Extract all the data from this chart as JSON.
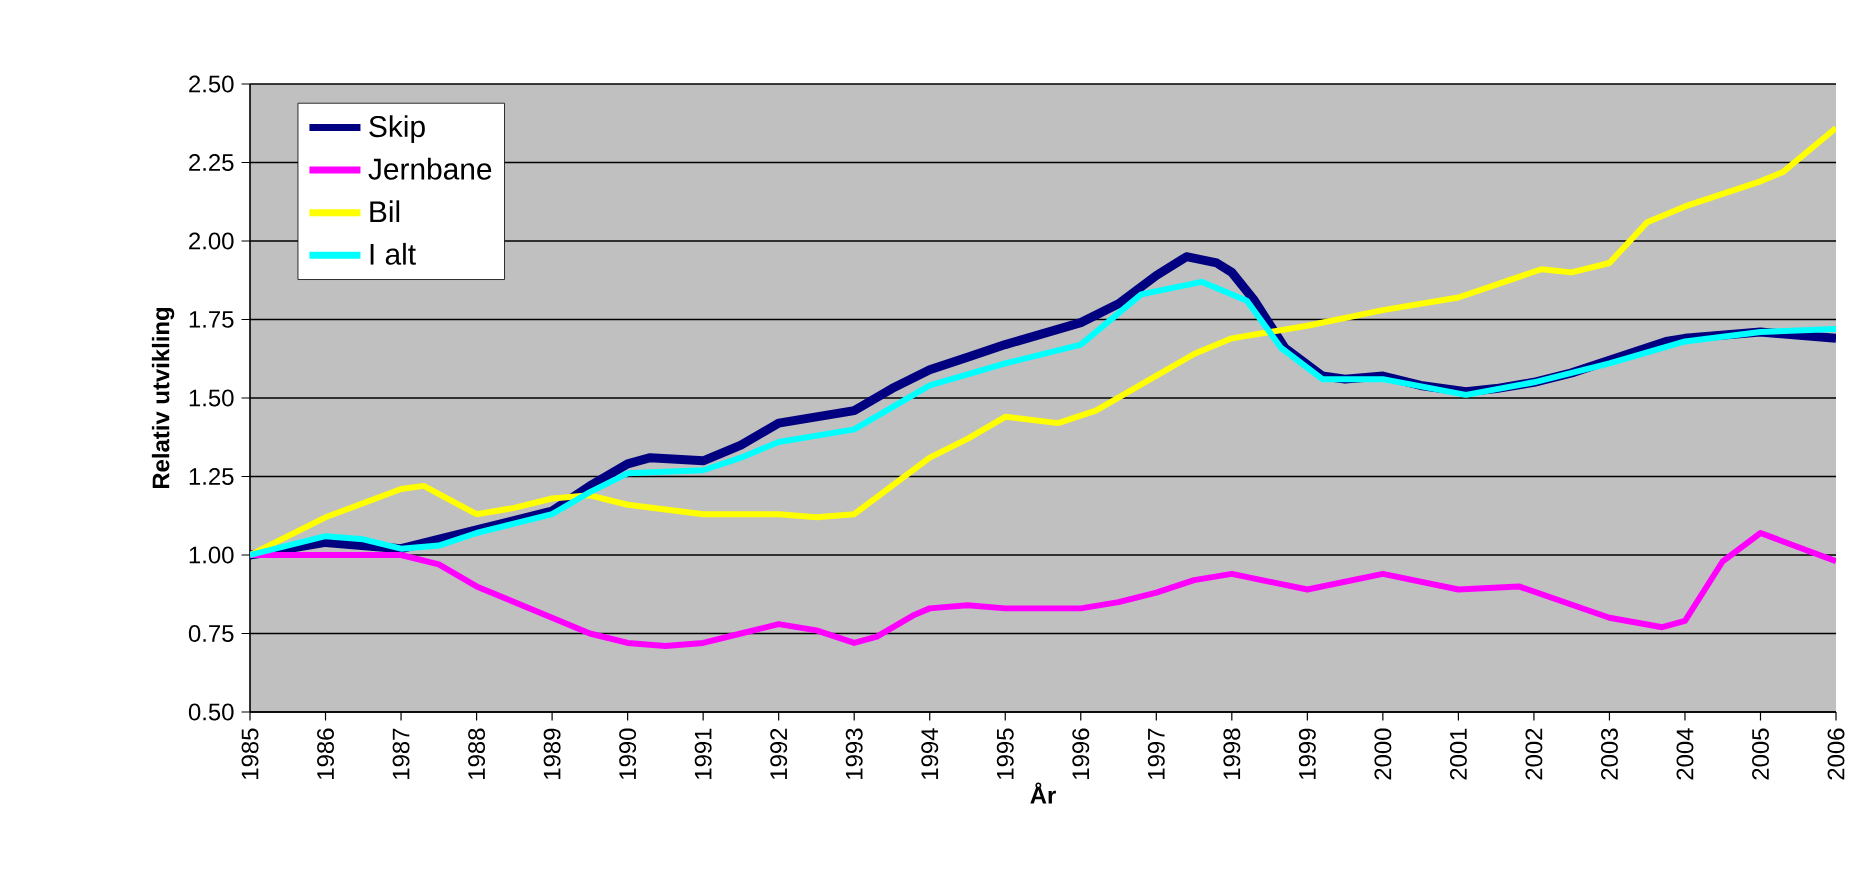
{
  "chart_data": {
    "type": "line",
    "xlabel": "År",
    "ylabel": "Relativ utvikling",
    "xlim": [
      1985,
      2006
    ],
    "xticks": [
      1985,
      1986,
      1987,
      1988,
      1989,
      1990,
      1991,
      1992,
      1993,
      1994,
      1995,
      1996,
      1997,
      1998,
      1999,
      2000,
      2001,
      2002,
      2003,
      2004,
      2005,
      2006
    ],
    "ylim": [
      0.5,
      2.5
    ],
    "yticks": [
      {
        "value": 0.5,
        "label": "0.50"
      },
      {
        "value": 0.75,
        "label": "0.75"
      },
      {
        "value": 1.0,
        "label": "1.00"
      },
      {
        "value": 1.25,
        "label": "1.25"
      },
      {
        "value": 1.5,
        "label": "1.50"
      },
      {
        "value": 1.75,
        "label": "1.75"
      },
      {
        "value": 2.0,
        "label": "2.00"
      },
      {
        "value": 2.25,
        "label": "2.25"
      },
      {
        "value": 2.5,
        "label": "2.50"
      }
    ],
    "grid": "y",
    "legend": "top left",
    "marker": "none",
    "line_style": "solid",
    "series": [
      {
        "name": "Skip",
        "color": "#000080",
        "x": [
          1985,
          1986,
          1987,
          1988,
          1989,
          1989.5,
          1990,
          1990.3,
          1991,
          1991.5,
          1992,
          1992.5,
          1993,
          1993.5,
          1994,
          1994.5,
          1995,
          1996,
          1996.5,
          1997,
          1997.4,
          1997.8,
          1998,
          1998.3,
          1998.7,
          1999.2,
          1999.5,
          2000,
          2000.5,
          2001.1,
          2001.5,
          2002,
          2002.5,
          2003,
          2003.75,
          2004,
          2005,
          2006
        ],
        "values": [
          1.0,
          1.04,
          1.02,
          1.08,
          1.14,
          1.22,
          1.29,
          1.31,
          1.3,
          1.35,
          1.42,
          1.44,
          1.46,
          1.53,
          1.59,
          1.63,
          1.67,
          1.74,
          1.8,
          1.89,
          1.95,
          1.93,
          1.9,
          1.81,
          1.66,
          1.57,
          1.56,
          1.57,
          1.54,
          1.52,
          1.53,
          1.55,
          1.58,
          1.62,
          1.68,
          1.69,
          1.71,
          1.69
        ]
      },
      {
        "name": "Jernbane",
        "color": "#ff00ff",
        "x": [
          1985,
          1986,
          1987,
          1987.5,
          1988,
          1989,
          1989.5,
          1990,
          1990.5,
          1991,
          1991.5,
          1992,
          1992.5,
          1993,
          1993.3,
          1993.8,
          1994,
          1994.5,
          1995,
          1996,
          1996.5,
          1997,
          1997.5,
          1998,
          1999,
          2000,
          2001,
          2001.8,
          2003,
          2003.7,
          2004,
          2004.5,
          2005,
          2006
        ],
        "values": [
          1.0,
          1.0,
          1.0,
          0.97,
          0.9,
          0.8,
          0.75,
          0.72,
          0.71,
          0.72,
          0.75,
          0.78,
          0.76,
          0.72,
          0.74,
          0.81,
          0.83,
          0.84,
          0.83,
          0.83,
          0.85,
          0.88,
          0.92,
          0.94,
          0.89,
          0.94,
          0.89,
          0.9,
          0.8,
          0.77,
          0.79,
          0.98,
          1.07,
          0.98
        ]
      },
      {
        "name": "Bil",
        "color": "#ffff00",
        "x": [
          1985,
          1986,
          1987,
          1987.3,
          1988,
          1988.5,
          1989,
          1989.5,
          1990,
          1991,
          1992,
          1992.5,
          1993,
          1993.5,
          1994,
          1994.5,
          1995,
          1995.7,
          1996.2,
          1997.5,
          1998,
          1999,
          2000,
          2001,
          2002.1,
          2002.5,
          2003,
          2003.5,
          2004,
          2005,
          2005.3,
          2006
        ],
        "values": [
          1.0,
          1.12,
          1.21,
          1.22,
          1.13,
          1.15,
          1.18,
          1.19,
          1.16,
          1.13,
          1.13,
          1.12,
          1.13,
          1.22,
          1.31,
          1.37,
          1.44,
          1.42,
          1.46,
          1.64,
          1.69,
          1.73,
          1.78,
          1.82,
          1.91,
          1.9,
          1.93,
          2.06,
          2.11,
          2.19,
          2.22,
          2.36
        ]
      },
      {
        "name": "I alt",
        "color": "#00ffff",
        "x": [
          1985,
          1986,
          1986.5,
          1987,
          1987.5,
          1988,
          1989,
          1989.5,
          1990,
          1991,
          1991.5,
          1992,
          1993,
          1993.5,
          1994,
          1995,
          1996,
          1996.8,
          1997.6,
          1998.2,
          1998.65,
          1999.2,
          2000,
          2001.1,
          2002,
          2003,
          2004,
          2005,
          2006
        ],
        "values": [
          1.0,
          1.06,
          1.05,
          1.02,
          1.03,
          1.07,
          1.13,
          1.2,
          1.26,
          1.27,
          1.31,
          1.36,
          1.4,
          1.47,
          1.54,
          1.61,
          1.67,
          1.83,
          1.87,
          1.81,
          1.66,
          1.56,
          1.56,
          1.51,
          1.55,
          1.61,
          1.68,
          1.71,
          1.72
        ]
      }
    ]
  }
}
